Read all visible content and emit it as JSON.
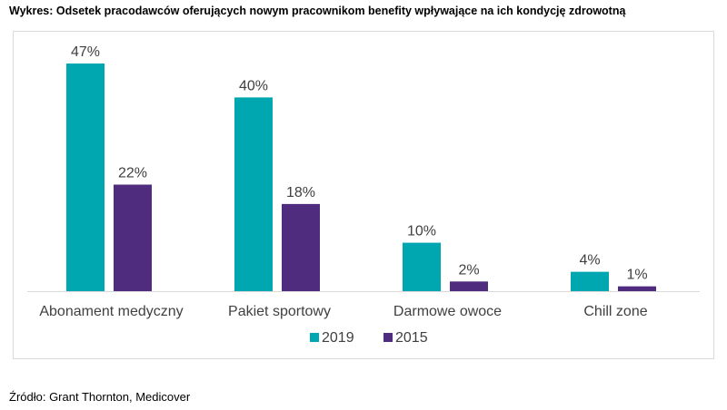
{
  "title": "Wykres:  Odsetek pracodawców oferujących nowym pracownikom benefity wpływające na ich kondycję zdrowotną",
  "source": "Źródło: Grant Thornton, Medicover",
  "colors": {
    "series_2019": "#00A6B0",
    "series_2015": "#4F2C7E",
    "axis": "#d9d9d9"
  },
  "chart_data": {
    "type": "bar",
    "title": "",
    "xlabel": "",
    "ylabel": "",
    "ylim": [
      0,
      50
    ],
    "grid": false,
    "legend": "bottom",
    "categories": [
      "Abonament medyczny",
      "Pakiet sportowy",
      "Darmowe owoce",
      "Chill zone"
    ],
    "series": [
      {
        "name": "2019",
        "values": [
          47,
          40,
          10,
          4
        ],
        "labels": [
          "47%",
          "40%",
          "10%",
          "4%"
        ]
      },
      {
        "name": "2015",
        "values": [
          22,
          18,
          2,
          1
        ],
        "labels": [
          "22%",
          "18%",
          "2%",
          "1%"
        ]
      }
    ]
  }
}
